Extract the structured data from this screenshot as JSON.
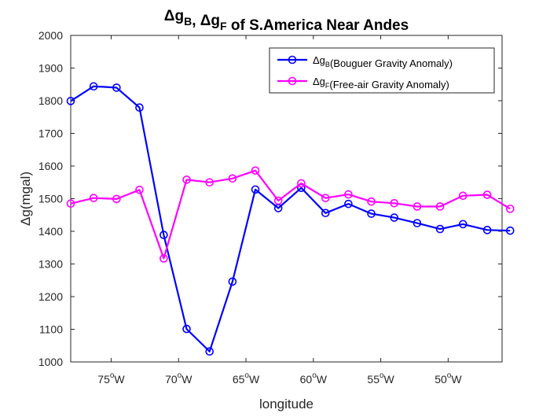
{
  "chart_data": {
    "type": "line",
    "title": {
      "parts": [
        {
          "text": "Δg",
          "sub": "B"
        },
        {
          "text": ", Δg",
          "sub": "F"
        },
        {
          "text": " of S.America Near Andes",
          "sub": ""
        }
      ]
    },
    "xlabel": "longitude",
    "ylabel": "Δg(mgal)",
    "xlim": [
      -78,
      -46
    ],
    "ylim": [
      1000,
      2000
    ],
    "x_ticks": [
      {
        "value": -75,
        "num": "75",
        "sup": "o",
        "suffix": "W"
      },
      {
        "value": -70,
        "num": "70",
        "sup": "o",
        "suffix": "W"
      },
      {
        "value": -65,
        "num": "65",
        "sup": "o",
        "suffix": "W"
      },
      {
        "value": -60,
        "num": "60",
        "sup": "o",
        "suffix": "W"
      },
      {
        "value": -55,
        "num": "55",
        "sup": "o",
        "suffix": "W"
      },
      {
        "value": -50,
        "num": "50",
        "sup": "o",
        "suffix": "W"
      }
    ],
    "y_ticks": [
      1000,
      1100,
      1200,
      1300,
      1400,
      1500,
      1600,
      1700,
      1800,
      1900,
      2000
    ],
    "grid": false,
    "legend": "top-right",
    "x": [
      -78,
      -76.3,
      -74.6,
      -72.9,
      -71.1,
      -69.4,
      -67.7,
      -66.0,
      -64.3,
      -62.6,
      -60.9,
      -59.1,
      -57.4,
      -55.7,
      -54.0,
      -52.3,
      -50.6,
      -48.9,
      -47.1,
      -45.4
    ],
    "series": [
      {
        "name_parts": [
          {
            "text": "Δg",
            "sub": "B"
          },
          {
            "text": "(Bouguer Gravity Anomaly)",
            "sub": ""
          }
        ],
        "color": "#0000ff",
        "values": [
          1799,
          1844,
          1840,
          1779,
          1389,
          1101,
          1032,
          1246,
          1528,
          1471,
          1533,
          1456,
          1484,
          1454,
          1442,
          1425,
          1407,
          1422,
          1404,
          1402
        ]
      },
      {
        "name_parts": [
          {
            "text": "Δg",
            "sub": "F"
          },
          {
            "text": "(Free-air Gravity Anomaly)",
            "sub": ""
          }
        ],
        "color": "#ff00ff",
        "values": [
          1485,
          1502,
          1499,
          1527,
          1317,
          1558,
          1550,
          1562,
          1586,
          1494,
          1547,
          1502,
          1513,
          1491,
          1486,
          1476,
          1476,
          1509,
          1512,
          1469
        ]
      }
    ]
  }
}
